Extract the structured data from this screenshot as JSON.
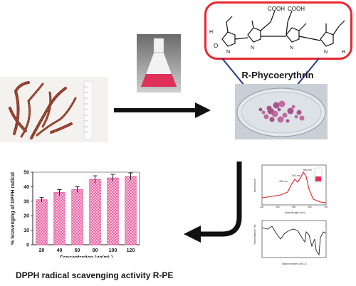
{
  "molecule_box": {
    "title": "R-Phycoerythrin",
    "groups": [
      "COOH",
      "COOH"
    ],
    "atoms": [
      "H",
      "O",
      "N",
      "N",
      "N",
      "N",
      "H"
    ],
    "frame_color": "#e8282e"
  },
  "chart_data": {
    "type": "bar",
    "categories": [
      "20",
      "40",
      "60",
      "80",
      "100",
      "120"
    ],
    "values": [
      31,
      36,
      38,
      45,
      46,
      47
    ],
    "errors": [
      1.5,
      2,
      2,
      2.5,
      2.5,
      2.5
    ],
    "ylim": [
      0,
      50
    ],
    "yticks": [
      "0",
      "10",
      "20",
      "30",
      "40",
      "50"
    ],
    "xlabel": "Concentration (µg/mL)",
    "ylabel": "% Scavenging of DPPH radical",
    "bar_color": "#e8559a",
    "grid": false
  },
  "bottom_caption": "DPPH radical scavenging activity R-PE",
  "spectra": {
    "uv_peak_labels": [
      "496 nm",
      "542 nm",
      "564 nm"
    ],
    "uv_ylabel": "Absorbance",
    "uv_xlabel": "Wavelength (nm)",
    "uv_xticks": [
      "300",
      "400",
      "500",
      "600",
      "700"
    ],
    "ir_ylabel": "Transmittance (%)",
    "ir_xlabel": "Wavenumber (cm-1)"
  },
  "colors": {
    "arrow": "#111111",
    "seaweed": "#8b3a2a",
    "pink_solution": "#e0305a",
    "powder": "#a8548c",
    "line_red": "#e02020",
    "line_dark": "#222222"
  }
}
